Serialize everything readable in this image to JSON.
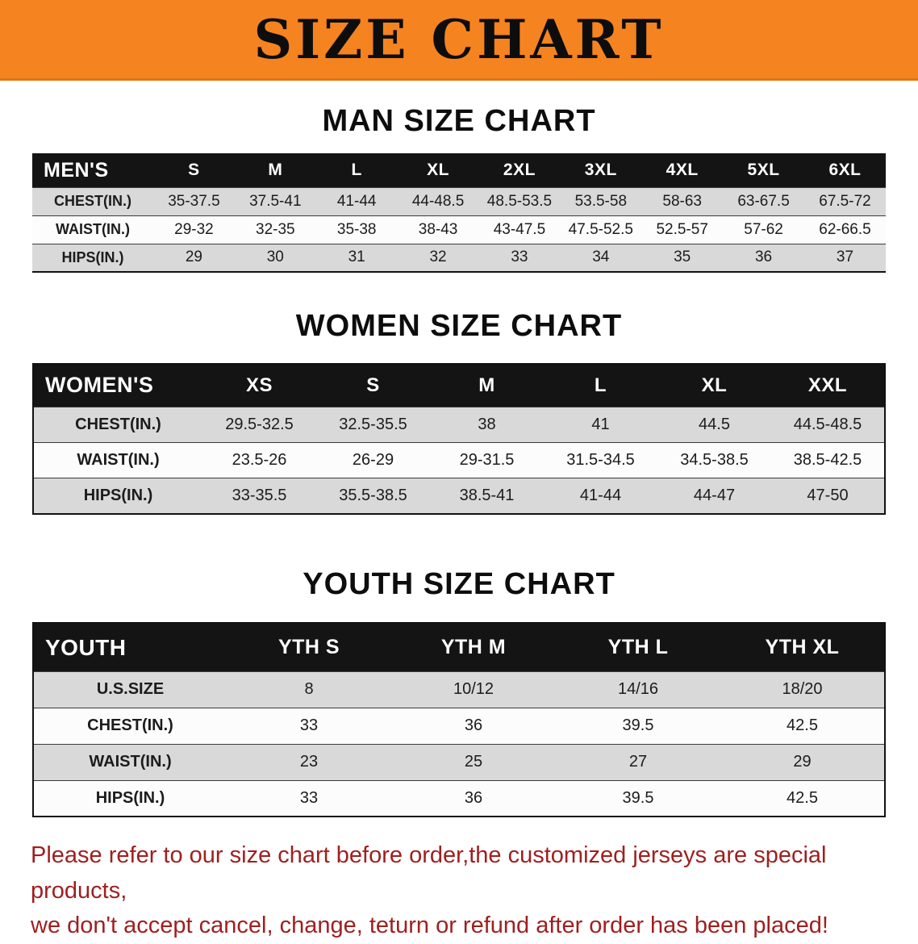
{
  "banner": {
    "title": "SIZE CHART",
    "bg_color": "#F5831F"
  },
  "sections": [
    {
      "heading": "MAN SIZE CHART",
      "table": {
        "header_label": "MEN'S",
        "columns": [
          "S",
          "M",
          "L",
          "XL",
          "2XL",
          "3XL",
          "4XL",
          "5XL",
          "6XL"
        ],
        "rows": [
          {
            "label": "CHEST(IN.)",
            "values": [
              "35-37.5",
              "37.5-41",
              "41-44",
              "44-48.5",
              "48.5-53.5",
              "53.5-58",
              "58-63",
              "63-67.5",
              "67.5-72"
            ]
          },
          {
            "label": "WAIST(IN.)",
            "values": [
              "29-32",
              "32-35",
              "35-38",
              "38-43",
              "43-47.5",
              "47.5-52.5",
              "52.5-57",
              "57-62",
              "62-66.5"
            ]
          },
          {
            "label": "HIPS(IN.)",
            "values": [
              "29",
              "30",
              "31",
              "32",
              "33",
              "34",
              "35",
              "36",
              "37"
            ]
          }
        ]
      }
    },
    {
      "heading": "WOMEN SIZE CHART",
      "table": {
        "header_label": "WOMEN'S",
        "columns": [
          "XS",
          "S",
          "M",
          "L",
          "XL",
          "XXL"
        ],
        "rows": [
          {
            "label": "CHEST(IN.)",
            "values": [
              "29.5-32.5",
              "32.5-35.5",
              "38",
              "41",
              "44.5",
              "44.5-48.5"
            ]
          },
          {
            "label": "WAIST(IN.)",
            "values": [
              "23.5-26",
              "26-29",
              "29-31.5",
              "31.5-34.5",
              "34.5-38.5",
              "38.5-42.5"
            ]
          },
          {
            "label": "HIPS(IN.)",
            "values": [
              "33-35.5",
              "35.5-38.5",
              "38.5-41",
              "41-44",
              "44-47",
              "47-50"
            ]
          }
        ]
      }
    },
    {
      "heading": "YOUTH SIZE CHART",
      "table": {
        "header_label": "YOUTH",
        "columns": [
          "YTH S",
          "YTH M",
          "YTH L",
          "YTH XL"
        ],
        "rows": [
          {
            "label": "U.S.SIZE",
            "values": [
              "8",
              "10/12",
              "14/16",
              "18/20"
            ]
          },
          {
            "label": "CHEST(IN.)",
            "values": [
              "33",
              "36",
              "39.5",
              "42.5"
            ]
          },
          {
            "label": "WAIST(IN.)",
            "values": [
              "23",
              "25",
              "27",
              "29"
            ]
          },
          {
            "label": "HIPS(IN.)",
            "values": [
              "33",
              "36",
              "39.5",
              "42.5"
            ]
          }
        ]
      }
    }
  ],
  "disclaimer": {
    "line1": "Please refer to our size chart before order,the customized jerseys are special products,",
    "line2": "we don't accept cancel, change, teturn or refund after order has been placed!",
    "color": "#9f1f1f"
  }
}
